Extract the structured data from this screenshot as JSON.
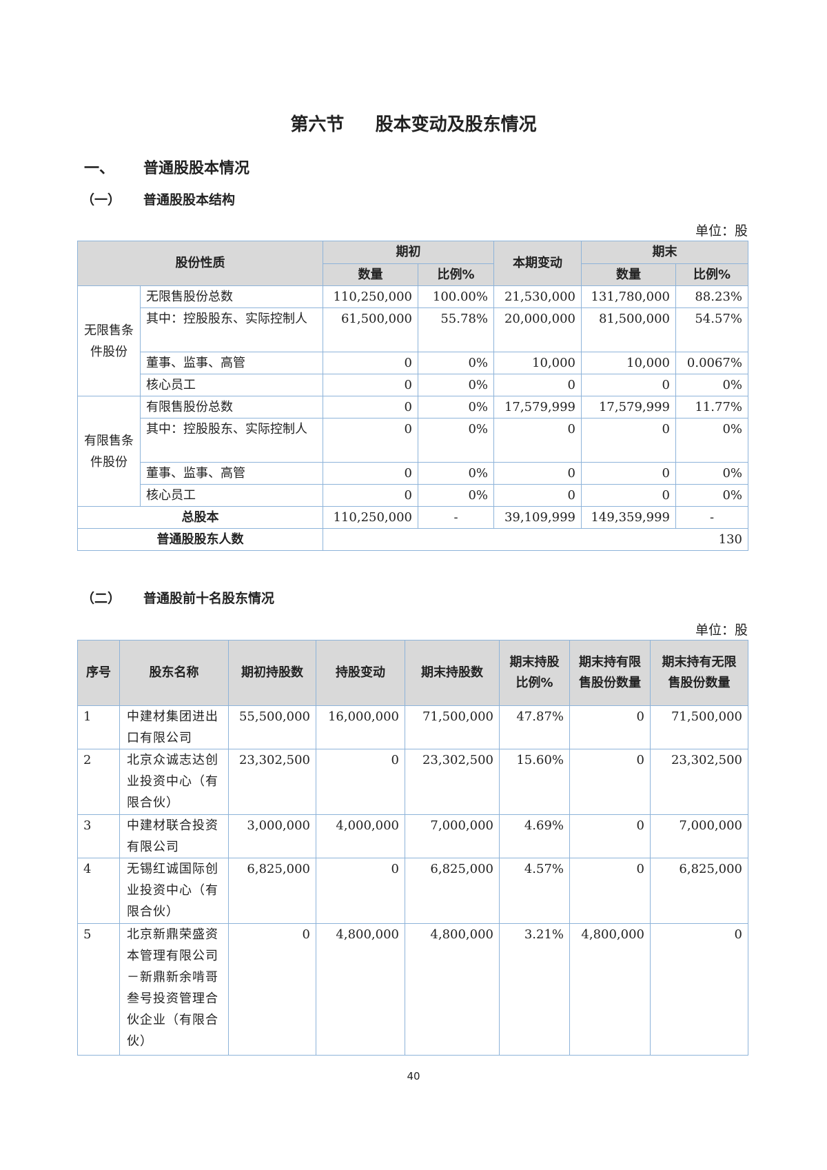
{
  "title": "第六节     股本变动及股东情况",
  "section1": {
    "num": "一、",
    "label": "普通股股本情况"
  },
  "sub1": {
    "num": "（一）",
    "label": "普通股股本结构"
  },
  "unit1": "单位：股",
  "table1": {
    "headers": {
      "nature": "股份性质",
      "begin": "期初",
      "change": "本期变动",
      "end": "期末",
      "qty": "数量",
      "ratio": "比例%"
    },
    "groups": [
      {
        "label": "无限售条件股份",
        "rows": [
          [
            "无限售股份总数",
            "110,250,000",
            "100.00%",
            "21,530,000",
            "131,780,000",
            "88.23%"
          ],
          [
            "其中：控股股东、实际控制人",
            "61,500,000",
            "55.78%",
            "20,000,000",
            "81,500,000",
            "54.57%"
          ],
          [
            "董事、监事、高管",
            "0",
            "0%",
            "10,000",
            "10,000",
            "0.0067%"
          ],
          [
            "核心员工",
            "0",
            "0%",
            "0",
            "0",
            "0%"
          ]
        ]
      },
      {
        "label": "有限售条件股份",
        "rows": [
          [
            "有限售股份总数",
            "0",
            "0%",
            "17,579,999",
            "17,579,999",
            "11.77%"
          ],
          [
            "其中：控股股东、实际控制人",
            "0",
            "0%",
            "0",
            "0",
            "0%"
          ],
          [
            "董事、监事、高管",
            "0",
            "0%",
            "0",
            "0",
            "0%"
          ],
          [
            "核心员工",
            "0",
            "0%",
            "0",
            "0",
            "0%"
          ]
        ]
      }
    ],
    "total": [
      "总股本",
      "110,250,000",
      "-",
      "39,109,999",
      "149,359,999",
      "-"
    ],
    "holders": {
      "label": "普通股股东人数",
      "value": "130"
    }
  },
  "sub2": {
    "num": "（二）",
    "label": "普通股前十名股东情况"
  },
  "unit2": "单位：股",
  "table2": {
    "headers": [
      "序号",
      "股东名称",
      "期初持股数",
      "持股变动",
      "期末持股数",
      "期末持股比例%",
      "期末持有限售股份数量",
      "期末持有无限售股份数量"
    ],
    "rows": [
      [
        "1",
        "中建材集团进出口有限公司",
        "55,500,000",
        "16,000,000",
        "71,500,000",
        "47.87%",
        "0",
        "71,500,000"
      ],
      [
        "2",
        "北京众诚志达创业投资中心（有限合伙）",
        "23,302,500",
        "0",
        "23,302,500",
        "15.60%",
        "0",
        "23,302,500"
      ],
      [
        "3",
        "中建材联合投资有限公司",
        "3,000,000",
        "4,000,000",
        "7,000,000",
        "4.69%",
        "0",
        "7,000,000"
      ],
      [
        "4",
        "无锡红诚国际创业投资中心（有限合伙）",
        "6,825,000",
        "0",
        "6,825,000",
        "4.57%",
        "0",
        "6,825,000"
      ],
      [
        "5",
        "北京新鼎荣盛资本管理有限公司－新鼎新余啃哥叁号投资管理合伙企业（有限合伙）",
        "0",
        "4,800,000",
        "4,800,000",
        "3.21%",
        "4,800,000",
        "0"
      ]
    ]
  },
  "page_number": "40"
}
